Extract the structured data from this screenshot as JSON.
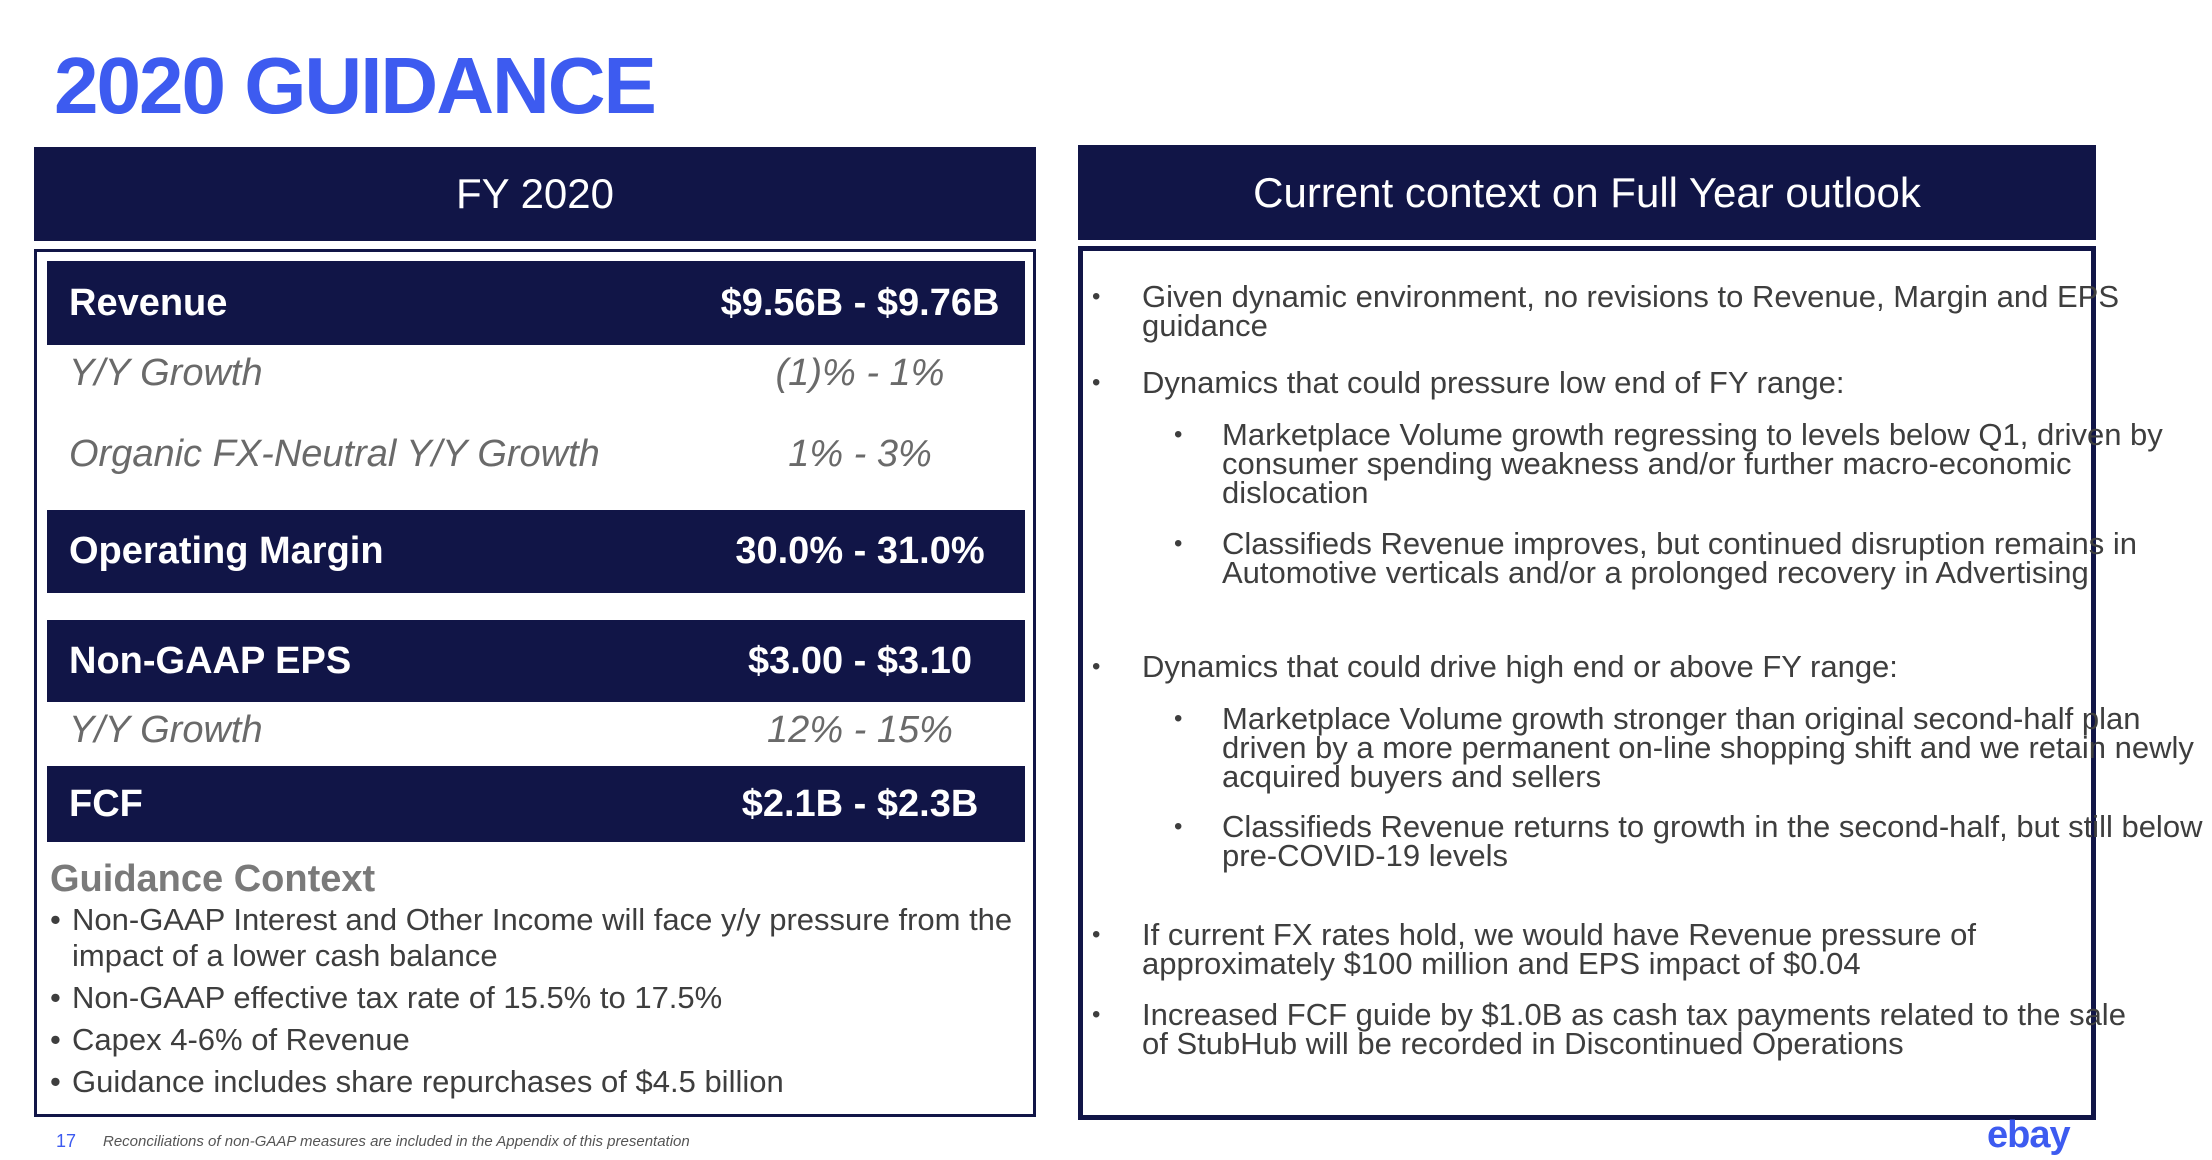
{
  "title": "2020 GUIDANCE",
  "left_panel": {
    "header": "FY 2020",
    "rows": [
      {
        "label": "Revenue",
        "value": "$9.56B - $9.76B",
        "style": "dark"
      },
      {
        "label": "Y/Y Growth",
        "value": "(1)% - 1%",
        "style": "light"
      },
      {
        "label": "Organic FX-Neutral Y/Y Growth",
        "value": "1% - 3%",
        "style": "light"
      },
      {
        "label": "Operating Margin",
        "value": "30.0% - 31.0%",
        "style": "dark"
      },
      {
        "label": "Non-GAAP EPS",
        "value": "$3.00 - $3.10",
        "style": "dark"
      },
      {
        "label": "Y/Y Growth",
        "value": "12% - 15%",
        "style": "light"
      },
      {
        "label": "FCF",
        "value": "$2.1B - $2.3B",
        "style": "dark"
      }
    ],
    "guidance_context": {
      "title": "Guidance Context",
      "items": [
        "Non-GAAP Interest and Other Income will face y/y pressure from the impact of a lower cash balance",
        "Non-GAAP effective tax rate of 15.5% to 17.5%",
        "Capex 4-6% of Revenue",
        "Guidance includes share repurchases of $4.5 billion"
      ]
    }
  },
  "right_panel": {
    "header": "Current context on Full Year outlook",
    "items": [
      {
        "text": "Given dynamic environment, no revisions to Revenue, Margin and EPS guidance",
        "sub": []
      },
      {
        "text": "Dynamics that could pressure low end of FY range:",
        "sub": [
          "Marketplace Volume growth regressing to levels below Q1, driven by consumer spending weakness and/or further macro-economic dislocation",
          "Classifieds Revenue improves, but continued disruption remains in Automotive verticals and/or a prolonged recovery in Advertising"
        ]
      },
      {
        "text": "Dynamics that could drive high end or above FY range:",
        "sub": [
          "Marketplace Volume growth stronger than original second-half plan driven by a more permanent on-line shopping shift and we retain newly acquired buyers and sellers",
          "Classifieds Revenue returns to growth in the second-half, but still below pre-COVID-19 levels"
        ]
      },
      {
        "text": "If current FX rates hold, we would have Revenue pressure of approximately $100 million and EPS impact of $0.04",
        "sub": []
      },
      {
        "text": "Increased FCF guide by $1.0B as cash tax payments related to the sale of StubHub will be recorded in Discontinued Operations",
        "sub": []
      }
    ]
  },
  "footer": {
    "page_number": "17",
    "note": "Reconciliations of non-GAAP measures are included in the Appendix of this presentation",
    "logo_text": "ebay"
  },
  "colors": {
    "accent": "#3d5bf0",
    "navy": "#111547",
    "text": "#3e3e3e"
  }
}
